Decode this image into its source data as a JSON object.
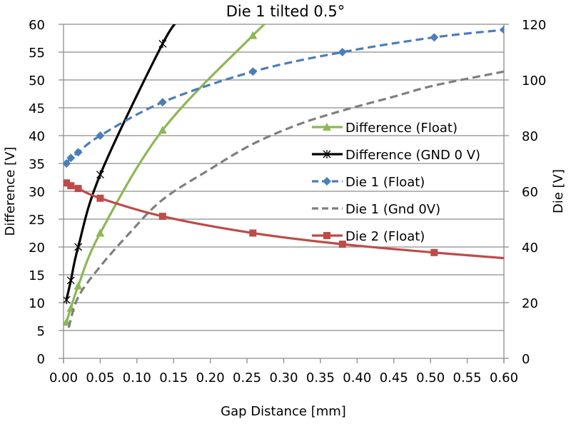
{
  "chart_data": {
    "type": "line",
    "title": "Die 1 tilted 0.5°",
    "xlabel": "Gap Distance [mm]",
    "ylabel": "Difference [V]",
    "y2label": "Die [V]",
    "xlim": [
      0,
      0.6
    ],
    "ylim": [
      0,
      60
    ],
    "y2lim": [
      0,
      120
    ],
    "x_ticks": [
      "0.00",
      "0.05",
      "0.10",
      "0.15",
      "0.20",
      "0.25",
      "0.30",
      "0.35",
      "0.40",
      "0.45",
      "0.50",
      "0.55",
      "0.60"
    ],
    "y_ticks": [
      "0",
      "5",
      "10",
      "15",
      "20",
      "25",
      "30",
      "35",
      "40",
      "45",
      "50",
      "55",
      "60"
    ],
    "y2_ticks": [
      "0",
      "20",
      "40",
      "60",
      "80",
      "100",
      "120"
    ],
    "grid": true,
    "legend_position": "center-right",
    "series": [
      {
        "name": "Difference (Float)",
        "axis": "left",
        "color": "#8DB753",
        "marker": "triangle",
        "dash": "solid",
        "x": [
          0.004,
          0.01,
          0.02,
          0.05,
          0.135,
          0.258,
          0.3
        ],
        "y": [
          6.5,
          9,
          13,
          22.5,
          41,
          58,
          63
        ],
        "marker_count": 6
      },
      {
        "name": "Difference (GND 0 V)",
        "axis": "left",
        "color": "#000000",
        "marker": "star",
        "dash": "solid",
        "x": [
          0.004,
          0.01,
          0.02,
          0.05,
          0.135,
          0.16
        ],
        "y": [
          10.5,
          14,
          20,
          33,
          56.5,
          61
        ],
        "marker_count": 5
      },
      {
        "name": "Die 1 (Float)",
        "axis": "right",
        "color": "#4A7EBB",
        "marker": "diamond",
        "dash": "dashed",
        "x": [
          0.004,
          0.01,
          0.02,
          0.05,
          0.135,
          0.258,
          0.38,
          0.505,
          0.6
        ],
        "y": [
          70,
          72,
          74,
          80,
          92,
          103,
          110,
          115.3,
          118
        ],
        "marker_count": 9
      },
      {
        "name": "Die 1 (Gnd 0V)",
        "axis": "right",
        "color": "#7F7F7F",
        "marker": "none",
        "dash": "dashed",
        "x": [
          0.007,
          0.02,
          0.05,
          0.09,
          0.135,
          0.2,
          0.258,
          0.32,
          0.38,
          0.45,
          0.505,
          0.6
        ],
        "y": [
          11,
          22,
          33,
          45,
          57,
          68,
          77,
          84,
          89,
          94,
          98,
          103
        ]
      },
      {
        "name": "Die 2 (Float)",
        "axis": "right",
        "color": "#BE4B48",
        "marker": "square",
        "dash": "solid",
        "x": [
          0.004,
          0.01,
          0.02,
          0.05,
          0.135,
          0.258,
          0.38,
          0.505,
          0.6
        ],
        "y": [
          63,
          62,
          61,
          57.5,
          51,
          45,
          41,
          38,
          36
        ],
        "marker_count": 8
      }
    ]
  }
}
